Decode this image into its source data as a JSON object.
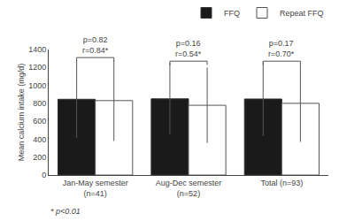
{
  "chart_data": {
    "type": "bar",
    "categories": [
      "Jan-May semester\n(n=41)",
      "Aug-Dec semester\n(n=52)",
      "Total (n=93)"
    ],
    "series": [
      {
        "name": "FFQ",
        "color": "#1a1a1a",
        "values": [
          845,
          850,
          848
        ],
        "errors": [
          435,
          400,
          415
        ]
      },
      {
        "name": "Repeat FFQ",
        "color": "#ffffff",
        "values": [
          830,
          778,
          800
        ],
        "errors": [
          450,
          420,
          430
        ]
      }
    ],
    "ylabel": "Mean calcium intake (mg/d)",
    "ylim": [
      0,
      1400
    ],
    "yticks": [
      0,
      200,
      400,
      600,
      800,
      1000,
      1200,
      1400
    ],
    "annotations": [
      {
        "text": "p=0.82\nr=0.84*",
        "category": "Jan-May semester\n(n=41)",
        "y": 1310
      },
      {
        "text": "p=0.16\nr=0.54*",
        "category": "Aug-Dec semester\n(n=52)",
        "y": 1270
      },
      {
        "text": "p=0.17\nr=0.70*",
        "category": "Total (n=93)",
        "y": 1270
      }
    ],
    "footnote": "* p<0.01",
    "legend": "upper right",
    "grid": false
  }
}
